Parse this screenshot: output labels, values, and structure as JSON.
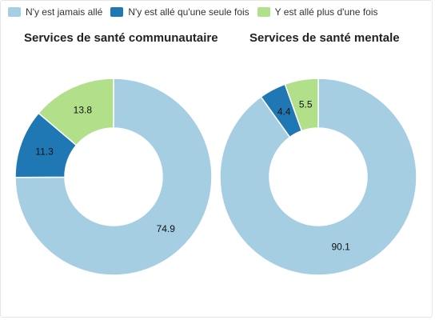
{
  "legend": [
    {
      "label": "N'y est jamais allé",
      "color": "#a6cee3"
    },
    {
      "label": "N'y est allé qu'une seule fois",
      "color": "#1f78b4"
    },
    {
      "label": "Y est allé plus d'une fois",
      "color": "#b2df8a"
    }
  ],
  "chart_data": [
    {
      "type": "pie",
      "variant": "donut",
      "title": "Services de santé communautaire",
      "categories": [
        "N'y est jamais allé",
        "N'y est allé qu'une seule fois",
        "Y est allé plus d'une fois"
      ],
      "values": [
        74.9,
        11.3,
        13.8
      ],
      "colors": [
        "#a6cee3",
        "#1f78b4",
        "#b2df8a"
      ],
      "value_labels": [
        "74.9",
        "11.3",
        "13.8"
      ],
      "legend_position": "top-left"
    },
    {
      "type": "pie",
      "variant": "donut",
      "title": "Services de santé mentale",
      "categories": [
        "N'y est jamais allé",
        "N'y est allé qu'une seule fois",
        "Y est allé plus d'une fois"
      ],
      "values": [
        90.1,
        4.4,
        5.5
      ],
      "colors": [
        "#a6cee3",
        "#1f78b4",
        "#b2df8a"
      ],
      "value_labels": [
        "90.1",
        "4.4",
        "5.5"
      ],
      "legend_position": "top-left"
    }
  ]
}
